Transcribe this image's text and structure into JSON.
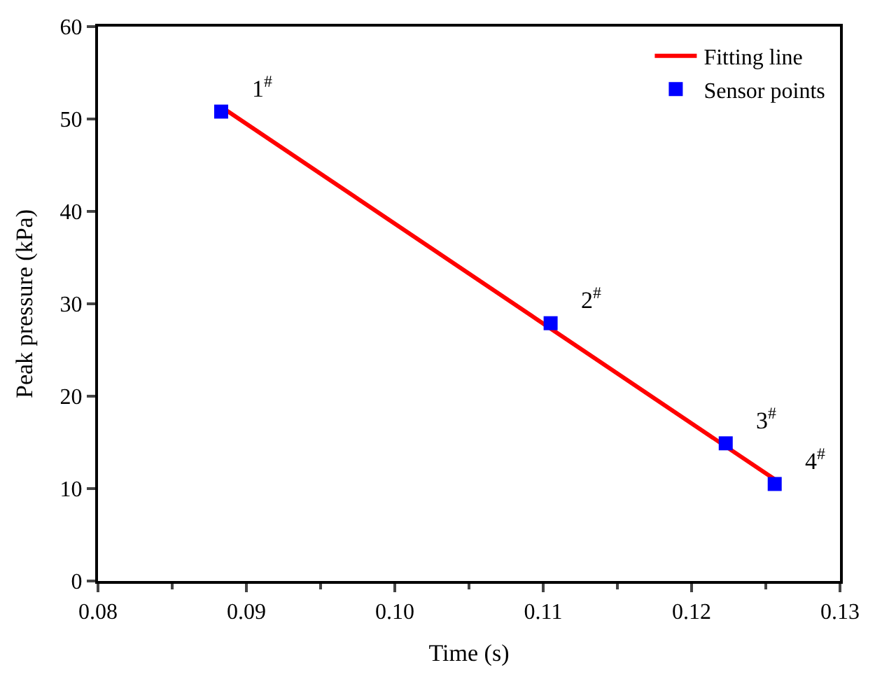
{
  "chart_data": {
    "type": "scatter",
    "xlabel": "Time (s)",
    "ylabel": "Peak pressure (kPa)",
    "xlim": [
      0.08,
      0.13
    ],
    "xticks": [
      {
        "value": 0.08,
        "label": "0.08"
      },
      {
        "value": 0.09,
        "label": "0.09"
      },
      {
        "value": 0.1,
        "label": "0.10"
      },
      {
        "value": 0.11,
        "label": "0.11"
      },
      {
        "value": 0.12,
        "label": "0.12"
      },
      {
        "value": 0.13,
        "label": "0.13"
      }
    ],
    "ylim": [
      0,
      60
    ],
    "yticks": [
      0,
      10,
      20,
      30,
      40,
      50,
      60
    ],
    "legend": "top right",
    "series": [
      {
        "name": "Fitting line",
        "type": "line",
        "color": "#ff0000",
        "marker": "none",
        "line_style": "solid",
        "x": [
          0.0885,
          0.1256
        ],
        "values": [
          51.1,
          11.0
        ]
      },
      {
        "name": "Sensor points",
        "color": "#0000ff",
        "marker": "square",
        "x": [
          0.0883,
          0.1105,
          0.1223,
          0.1256
        ],
        "values": [
          50.8,
          27.9,
          14.9,
          10.5
        ]
      }
    ],
    "annotations": [
      {
        "text": "1$^{#}$",
        "x": 0.0883,
        "y": 50.8
      },
      {
        "text": "2$^{#}$",
        "x": 0.1105,
        "y": 27.9
      },
      {
        "text": "3$^{#}$",
        "x": 0.1223,
        "y": 14.9
      },
      {
        "text": "4$^{#}$",
        "x": 0.1256,
        "y": 10.5
      }
    ]
  }
}
